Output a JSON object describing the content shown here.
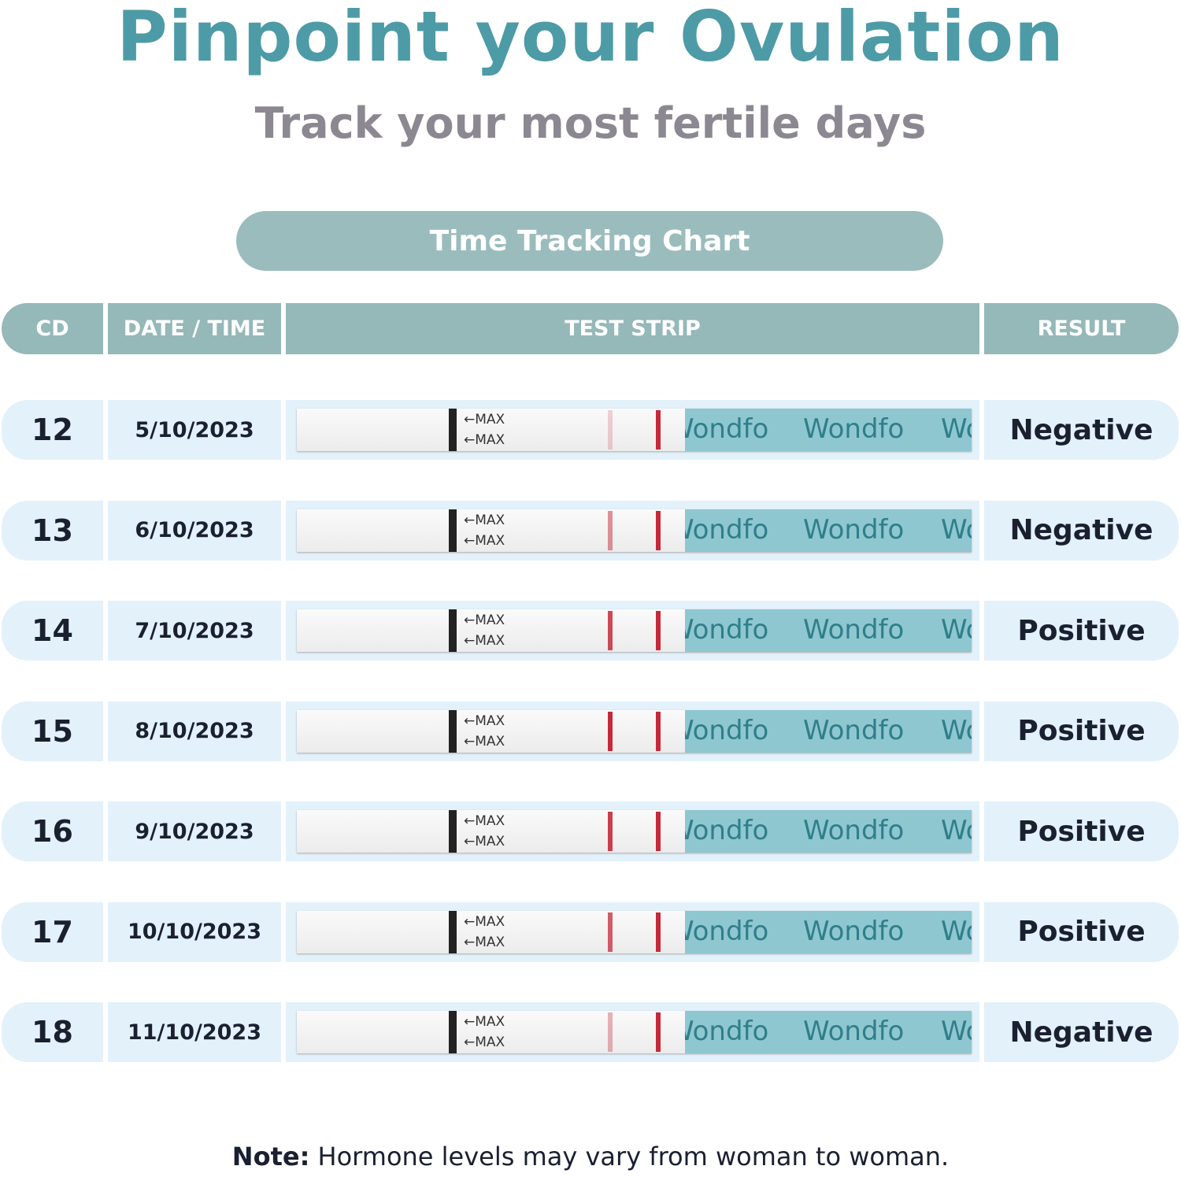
{
  "header": {
    "title": "Pinpoint your Ovulation",
    "subtitle": "Track your most fertile days",
    "banner": "Time Tracking Chart"
  },
  "table": {
    "columns": [
      "CD",
      "DATE / TIME",
      "TEST STRIP",
      "RESULT"
    ],
    "rows": [
      {
        "cd": "12",
        "date": "5/10/2023",
        "result": "Negative"
      },
      {
        "cd": "13",
        "date": "6/10/2023",
        "result": "Negative"
      },
      {
        "cd": "14",
        "date": "7/10/2023",
        "result": "Positive"
      },
      {
        "cd": "15",
        "date": "8/10/2023",
        "result": "Positive"
      },
      {
        "cd": "16",
        "date": "9/10/2023",
        "result": "Positive"
      },
      {
        "cd": "17",
        "date": "10/10/2023",
        "result": "Positive"
      },
      {
        "cd": "18",
        "date": "11/10/2023",
        "result": "Negative"
      }
    ]
  },
  "strip": {
    "marker": "MAX",
    "brand": "Wondfo"
  },
  "note": {
    "label": "Note:",
    "text": "Hormone levels may vary from woman to woman."
  }
}
